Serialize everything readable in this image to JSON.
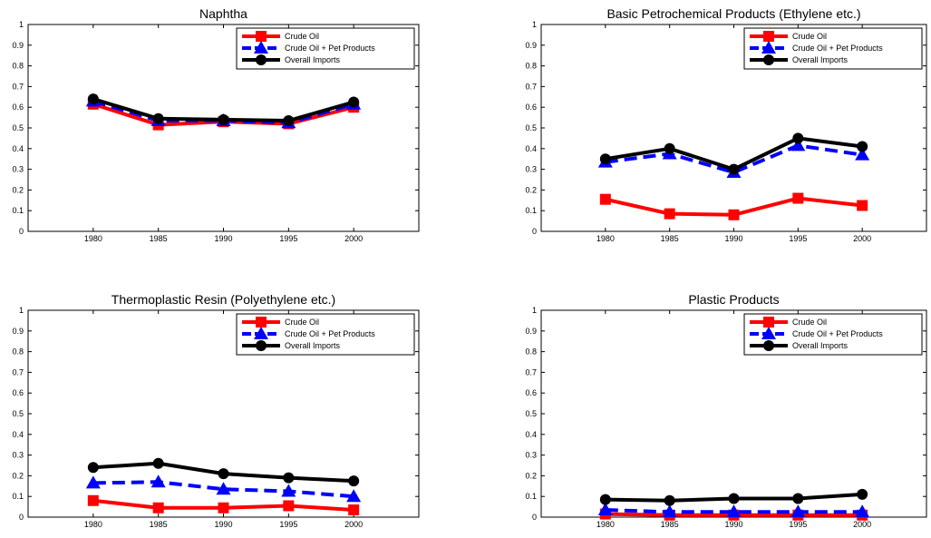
{
  "legend_placement": "top-right",
  "chart_data": [
    {
      "type": "line",
      "title": "Naphtha",
      "xlabel": "",
      "ylabel": "",
      "x": [
        1980,
        1985,
        1990,
        1995,
        2000
      ],
      "xlim": [
        1975,
        2005
      ],
      "ylim": [
        0,
        1
      ],
      "yticks": [
        "0",
        "0.1",
        "0.2",
        "0.3",
        "0.4",
        "0.5",
        "0.6",
        "0.7",
        "0.8",
        "0.9",
        "1"
      ],
      "xticks": [
        "1980",
        "1985",
        "1990",
        "1995",
        "2000"
      ],
      "series": [
        {
          "name": "Crude Oil",
          "color": "#ff0000",
          "marker": "square",
          "dash": "solid",
          "values": [
            0.615,
            0.515,
            0.53,
            0.52,
            0.6
          ]
        },
        {
          "name": "Crude Oil + Pet Products",
          "color": "#0000ff",
          "marker": "triangle",
          "dash": "dashed",
          "values": [
            0.63,
            0.535,
            0.535,
            0.525,
            0.615
          ]
        },
        {
          "name": "Overall Imports",
          "color": "#000000",
          "marker": "circle",
          "dash": "solid",
          "values": [
            0.64,
            0.545,
            0.54,
            0.535,
            0.625
          ]
        }
      ]
    },
    {
      "type": "line",
      "title": "Basic Petrochemical Products (Ethylene etc.)",
      "xlabel": "",
      "ylabel": "",
      "x": [
        1980,
        1985,
        1990,
        1995,
        2000
      ],
      "xlim": [
        1975,
        2005
      ],
      "ylim": [
        0,
        1
      ],
      "yticks": [
        "0",
        "0.1",
        "0.2",
        "0.3",
        "0.4",
        "0.5",
        "0.6",
        "0.7",
        "0.8",
        "0.9",
        "1"
      ],
      "xticks": [
        "1980",
        "1985",
        "1990",
        "1995",
        "2000"
      ],
      "series": [
        {
          "name": "Crude Oil",
          "color": "#ff0000",
          "marker": "square",
          "dash": "solid",
          "values": [
            0.155,
            0.085,
            0.08,
            0.16,
            0.125
          ]
        },
        {
          "name": "Crude Oil + Pet Products",
          "color": "#0000ff",
          "marker": "triangle",
          "dash": "dashed",
          "values": [
            0.335,
            0.375,
            0.285,
            0.415,
            0.37
          ]
        },
        {
          "name": "Overall Imports",
          "color": "#000000",
          "marker": "circle",
          "dash": "solid",
          "values": [
            0.35,
            0.4,
            0.3,
            0.45,
            0.41
          ]
        }
      ]
    },
    {
      "type": "line",
      "title": "Thermoplastic Resin (Polyethylene etc.)",
      "xlabel": "",
      "ylabel": "",
      "x": [
        1980,
        1985,
        1990,
        1995,
        2000
      ],
      "xlim": [
        1975,
        2005
      ],
      "ylim": [
        0,
        1
      ],
      "yticks": [
        "0",
        "0.1",
        "0.2",
        "0.3",
        "0.4",
        "0.5",
        "0.6",
        "0.7",
        "0.8",
        "0.9",
        "1"
      ],
      "xticks": [
        "1980",
        "1985",
        "1990",
        "1995",
        "2000"
      ],
      "series": [
        {
          "name": "Crude Oil",
          "color": "#ff0000",
          "marker": "square",
          "dash": "solid",
          "values": [
            0.08,
            0.045,
            0.045,
            0.055,
            0.035
          ]
        },
        {
          "name": "Crude Oil + Pet Products",
          "color": "#0000ff",
          "marker": "triangle",
          "dash": "dashed",
          "values": [
            0.165,
            0.17,
            0.135,
            0.125,
            0.1
          ]
        },
        {
          "name": "Overall Imports",
          "color": "#000000",
          "marker": "circle",
          "dash": "solid",
          "values": [
            0.24,
            0.26,
            0.21,
            0.19,
            0.175
          ]
        }
      ]
    },
    {
      "type": "line",
      "title": "Plastic Products",
      "xlabel": "",
      "ylabel": "",
      "x": [
        1980,
        1985,
        1990,
        1995,
        2000
      ],
      "xlim": [
        1975,
        2005
      ],
      "ylim": [
        0,
        1
      ],
      "yticks": [
        "0",
        "0.1",
        "0.2",
        "0.3",
        "0.4",
        "0.5",
        "0.6",
        "0.7",
        "0.8",
        "0.9",
        "1"
      ],
      "xticks": [
        "1980",
        "1985",
        "1990",
        "1995",
        "2000"
      ],
      "series": [
        {
          "name": "Crude Oil",
          "color": "#ff0000",
          "marker": "square",
          "dash": "solid",
          "values": [
            0.015,
            0.01,
            0.01,
            0.01,
            0.01
          ]
        },
        {
          "name": "Crude Oil + Pet Products",
          "color": "#0000ff",
          "marker": "triangle",
          "dash": "dashed",
          "values": [
            0.035,
            0.025,
            0.025,
            0.025,
            0.025
          ]
        },
        {
          "name": "Overall Imports",
          "color": "#000000",
          "marker": "circle",
          "dash": "solid",
          "values": [
            0.085,
            0.08,
            0.09,
            0.09,
            0.11
          ]
        }
      ]
    }
  ]
}
